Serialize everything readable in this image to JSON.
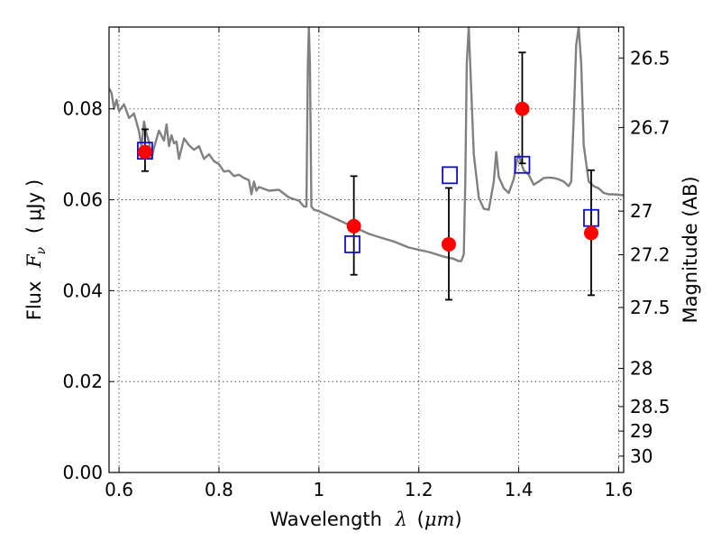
{
  "chart_data": {
    "type": "scatter",
    "xlabel_text": "Wavelength",
    "xlabel_symbol": "λ",
    "xlabel_unit": "μm",
    "ylabel_text": "Flux",
    "ylabel_symbol": "F",
    "ylabel_sub": "ν",
    "ylabel_unit": "μJy",
    "y2label": "Magnitude (AB)",
    "xlim": [
      0.58,
      1.61
    ],
    "ylim": [
      0.0,
      0.098
    ],
    "grid": true,
    "x_ticks": [
      0.6,
      0.8,
      1.0,
      1.2,
      1.4,
      1.6
    ],
    "x_tick_labels": [
      "0.6",
      "0.8",
      "1",
      "1.2",
      "1.4",
      "1.6"
    ],
    "y_ticks": [
      0.0,
      0.02,
      0.04,
      0.06,
      0.08
    ],
    "y_tick_labels": [
      "0.00",
      "0.02",
      "0.04",
      "0.06",
      "0.08"
    ],
    "y2_ticks": [
      {
        "label": "26.5",
        "flux": 0.0912
      },
      {
        "label": "26.7",
        "flux": 0.0759
      },
      {
        "label": "27",
        "flux": 0.0575
      },
      {
        "label": "27.2",
        "flux": 0.0479
      },
      {
        "label": "27.5",
        "flux": 0.0363
      },
      {
        "label": "28",
        "flux": 0.0229
      },
      {
        "label": "28.5",
        "flux": 0.0145
      },
      {
        "label": "29",
        "flux": 0.0091
      },
      {
        "label": "30",
        "flux": 0.0036
      }
    ],
    "model_spectrum": {
      "x": [
        0.58,
        0.585,
        0.59,
        0.595,
        0.6,
        0.61,
        0.62,
        0.63,
        0.64,
        0.645,
        0.65,
        0.655,
        0.66,
        0.665,
        0.67,
        0.68,
        0.69,
        0.695,
        0.7,
        0.705,
        0.71,
        0.715,
        0.72,
        0.73,
        0.74,
        0.75,
        0.76,
        0.77,
        0.78,
        0.79,
        0.8,
        0.81,
        0.82,
        0.83,
        0.84,
        0.85,
        0.86,
        0.865,
        0.87,
        0.875,
        0.88,
        0.9,
        0.92,
        0.94,
        0.96,
        0.97,
        0.975,
        0.978,
        0.98,
        0.982,
        0.985,
        0.99,
        1.0,
        1.02,
        1.05,
        1.08,
        1.1,
        1.12,
        1.15,
        1.18,
        1.2,
        1.22,
        1.25,
        1.27,
        1.28,
        1.285,
        1.29,
        1.293,
        1.296,
        1.3,
        1.31,
        1.32,
        1.33,
        1.34,
        1.35,
        1.355,
        1.36,
        1.37,
        1.38,
        1.39,
        1.395,
        1.4,
        1.405,
        1.41,
        1.42,
        1.43,
        1.44,
        1.45,
        1.46,
        1.47,
        1.48,
        1.49,
        1.5,
        1.505,
        1.51,
        1.515,
        1.52,
        1.525,
        1.53,
        1.54,
        1.55,
        1.56,
        1.57,
        1.58,
        1.59,
        1.61
      ],
      "y": [
        0.0845,
        0.0835,
        0.08,
        0.082,
        0.0795,
        0.081,
        0.078,
        0.079,
        0.075,
        0.0715,
        0.0772,
        0.0745,
        0.0728,
        0.069,
        0.0715,
        0.0752,
        0.073,
        0.0766,
        0.0718,
        0.0742,
        0.0724,
        0.0728,
        0.069,
        0.0735,
        0.072,
        0.071,
        0.0718,
        0.069,
        0.07,
        0.0685,
        0.0678,
        0.0662,
        0.0664,
        0.0652,
        0.0655,
        0.0648,
        0.0643,
        0.0612,
        0.064,
        0.062,
        0.0628,
        0.062,
        0.0622,
        0.0605,
        0.0598,
        0.0585,
        0.0585,
        0.09,
        0.098,
        0.09,
        0.0585,
        0.0578,
        0.0575,
        0.0565,
        0.055,
        0.0535,
        0.0525,
        0.0518,
        0.0508,
        0.0495,
        0.049,
        0.0485,
        0.0475,
        0.047,
        0.0465,
        0.0465,
        0.048,
        0.064,
        0.09,
        0.098,
        0.07,
        0.0605,
        0.058,
        0.0578,
        0.064,
        0.0705,
        0.065,
        0.0625,
        0.0615,
        0.0645,
        0.068,
        0.07,
        0.068,
        0.0665,
        0.0655,
        0.0633,
        0.064,
        0.0648,
        0.0649,
        0.0648,
        0.0645,
        0.064,
        0.063,
        0.064,
        0.078,
        0.094,
        0.098,
        0.09,
        0.072,
        0.064,
        0.063,
        0.0625,
        0.0615,
        0.0612,
        0.0612,
        0.061
      ]
    },
    "model_photometry": [
      {
        "x": 0.652,
        "y": 0.0708
      },
      {
        "x": 1.067,
        "y": 0.0502
      },
      {
        "x": 1.262,
        "y": 0.0654
      },
      {
        "x": 1.407,
        "y": 0.0677
      },
      {
        "x": 1.545,
        "y": 0.056
      }
    ],
    "observed_photometry": [
      {
        "x": 0.652,
        "y": 0.0705,
        "yerr_low": 0.0663,
        "yerr_high": 0.0755,
        "color": "#9400b0"
      },
      {
        "x": 1.07,
        "y": 0.0542,
        "yerr_low": 0.0435,
        "yerr_high": 0.0652,
        "color": "#ff0000"
      },
      {
        "x": 1.26,
        "y": 0.0502,
        "yerr_low": 0.038,
        "yerr_high": 0.0626,
        "color": "#ff0000"
      },
      {
        "x": 1.407,
        "y": 0.08,
        "yerr_low": 0.068,
        "yerr_high": 0.0924,
        "color": "#ff0000"
      },
      {
        "x": 1.545,
        "y": 0.0527,
        "yerr_low": 0.039,
        "yerr_high": 0.0665,
        "color": "#ff0000"
      }
    ],
    "colors": {
      "model_line": "#808080",
      "model_points": "#1010c8",
      "observed_points": "#ff0000",
      "first_observed_point": "#9400b0"
    }
  }
}
